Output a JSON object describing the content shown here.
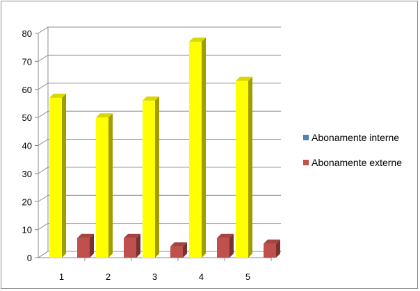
{
  "chart_data": {
    "type": "bar",
    "title": "",
    "xlabel": "",
    "ylabel": "",
    "categories": [
      "1",
      "2",
      "3",
      "4",
      "5"
    ],
    "ylim": [
      0,
      80
    ],
    "yticks": [
      "0",
      "10",
      "20",
      "30",
      "40",
      "50",
      "60",
      "70",
      "80"
    ],
    "grid": true,
    "three_d": true,
    "legend_position": "right",
    "series": [
      {
        "name": "Abonamente interne",
        "values": [
          57,
          50,
          56,
          77,
          63
        ],
        "color": "#ffff00",
        "legend_color": "#4f81bd"
      },
      {
        "name": "Abonamente externe",
        "values": [
          7,
          7,
          4,
          7,
          5
        ],
        "color": "#c0504d",
        "legend_color": "#c0504d"
      }
    ]
  }
}
